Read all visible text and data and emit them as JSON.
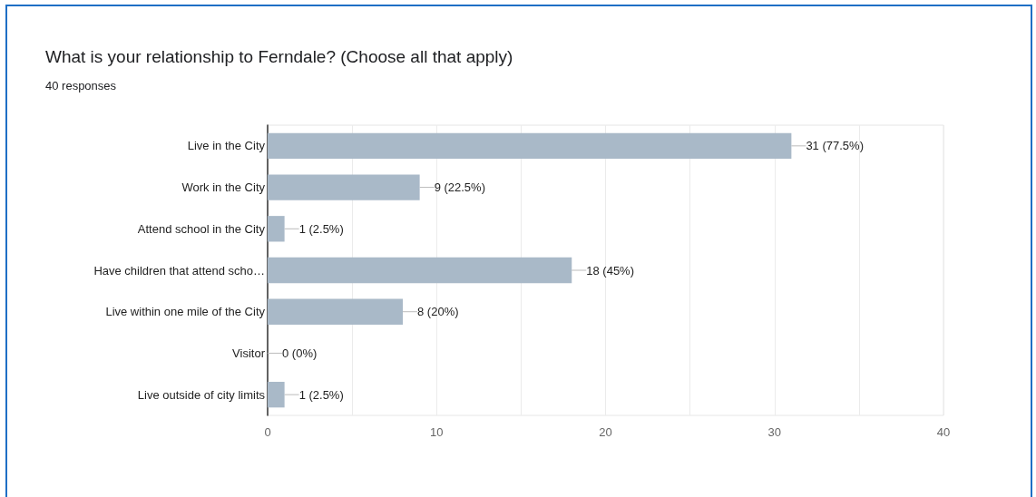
{
  "chart_data": {
    "type": "bar",
    "orientation": "horizontal",
    "title": "What is your relationship to Ferndale? (Choose all that apply)",
    "subtitle": "40 responses",
    "categories": [
      "Live in the City",
      "Work in the City",
      "Attend school in the City",
      "Have children that attend scho…",
      "Live within one mile of the City",
      "Visitor",
      "Live outside of city limits"
    ],
    "values": [
      31,
      9,
      1,
      18,
      8,
      0,
      1
    ],
    "color": "#a9b9c8",
    "value_labels": [
      "31 (77.5%)",
      "9 (22.5%)",
      "1 (2.5%)",
      "18 (45%)",
      "8 (20%)",
      "0 (0%)",
      "1 (2.5%)"
    ],
    "xlim": [
      0,
      40
    ],
    "xticks": [
      0,
      {
        "value": 5,
        "label": null
      },
      10,
      {
        "value": 15,
        "label": null
      },
      20,
      {
        "value": 25,
        "label": null
      },
      30,
      {
        "value": 35,
        "label": null
      },
      40
    ],
    "grid": "x"
  }
}
